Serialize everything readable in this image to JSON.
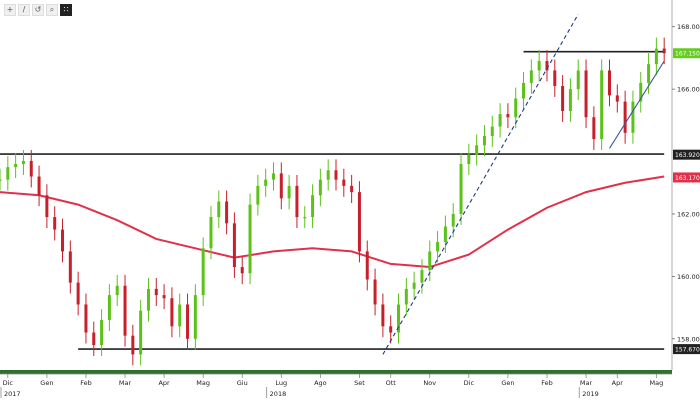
{
  "toolbar": {
    "items": [
      {
        "name": "zoom-in-icon",
        "glyph": "+"
      },
      {
        "name": "pencil-icon",
        "glyph": "/"
      },
      {
        "name": "reset-icon",
        "glyph": "↺"
      },
      {
        "name": "magnify-icon",
        "glyph": "⌕"
      },
      {
        "name": "grid-icon",
        "glyph": "∷"
      }
    ]
  },
  "chart_data": {
    "type": "line",
    "ylim": [
      157.0,
      168.6
    ],
    "yticks": [
      {
        "value": 168.0,
        "label": "168.0000"
      },
      {
        "value": 166.0,
        "label": "166.0000"
      },
      {
        "value": 162.0,
        "label": "162.0000"
      },
      {
        "value": 160.0,
        "label": "160.0000"
      },
      {
        "value": 158.0,
        "label": "158.0000"
      }
    ],
    "price_tags": [
      {
        "value": 167.15,
        "label": "167.1500",
        "color": "#66cc22"
      },
      {
        "value": 163.9,
        "label": "163.9200",
        "color": "#222222"
      },
      {
        "value": 163.17,
        "label": "163.1707",
        "color": "#e0304a"
      },
      {
        "value": 157.67,
        "label": "157.6700",
        "color": "#222222"
      }
    ],
    "x_months": [
      {
        "label": "Dic",
        "x": 1
      },
      {
        "label": "Gen",
        "x": 6
      },
      {
        "label": "Feb",
        "x": 11
      },
      {
        "label": "Mar",
        "x": 16
      },
      {
        "label": "Apr",
        "x": 21
      },
      {
        "label": "Mag",
        "x": 26
      },
      {
        "label": "Giu",
        "x": 31
      },
      {
        "label": "Lug",
        "x": 36
      },
      {
        "label": "Ago",
        "x": 41
      },
      {
        "label": "Set",
        "x": 46
      },
      {
        "label": "Ott",
        "x": 50
      },
      {
        "label": "Nov",
        "x": 55
      },
      {
        "label": "Dic",
        "x": 60
      },
      {
        "label": "Gen",
        "x": 65
      },
      {
        "label": "Feb",
        "x": 70
      },
      {
        "label": "Mar",
        "x": 75
      },
      {
        "label": "Apr",
        "x": 79
      },
      {
        "label": "Mag",
        "x": 84
      }
    ],
    "x_years": [
      {
        "label": "2017",
        "x": 0
      },
      {
        "label": "2018",
        "x": 34
      },
      {
        "label": "2019",
        "x": 74
      }
    ],
    "xlim": [
      0,
      86
    ],
    "series": [
      {
        "kind": "price",
        "x": [
          0,
          1,
          2,
          3,
          4,
          5,
          6,
          7,
          8,
          9,
          10,
          11,
          12,
          13,
          14,
          15,
          16,
          17,
          18,
          19,
          20,
          21,
          22,
          23,
          24,
          25,
          26,
          27,
          28,
          29,
          30,
          31,
          32,
          33,
          34,
          35,
          36,
          37,
          38,
          39,
          40,
          41,
          42,
          43,
          44,
          45,
          46,
          47,
          48,
          49,
          50,
          51,
          52,
          53,
          54,
          55,
          56,
          57,
          58,
          59,
          60,
          61,
          62,
          63,
          64,
          65,
          66,
          67,
          68,
          69,
          70,
          71,
          72,
          73,
          74,
          75,
          76,
          77,
          78,
          79,
          80,
          81,
          82,
          83,
          84,
          85
        ],
        "values": [
          163.1,
          163.5,
          163.6,
          163.7,
          163.2,
          162.6,
          161.9,
          161.5,
          160.8,
          159.8,
          159.1,
          158.2,
          157.8,
          158.6,
          159.4,
          159.7,
          158.1,
          157.5,
          158.9,
          159.6,
          159.4,
          159.3,
          158.4,
          159.1,
          158.0,
          159.4,
          160.9,
          161.9,
          162.4,
          161.7,
          160.3,
          160.1,
          162.3,
          162.9,
          163.1,
          163.3,
          162.5,
          162.9,
          161.9,
          161.9,
          162.6,
          163.1,
          163.4,
          163.1,
          162.9,
          162.7,
          160.8,
          159.9,
          159.1,
          158.4,
          158.2,
          159.1,
          159.6,
          159.8,
          160.2,
          160.8,
          161.1,
          161.6,
          162.0,
          163.6,
          163.9,
          164.2,
          164.5,
          164.8,
          165.2,
          165.1,
          165.7,
          166.2,
          166.6,
          166.9,
          166.6,
          166.1,
          165.3,
          166.0,
          166.6,
          165.1,
          164.4,
          166.6,
          165.8,
          165.6,
          164.6,
          165.6,
          166.2,
          166.8,
          167.3,
          167.15
        ]
      },
      {
        "kind": "moving_average",
        "color": "#e0304a",
        "x": [
          0,
          5,
          10,
          15,
          20,
          25,
          30,
          35,
          40,
          45,
          50,
          55,
          60,
          65,
          70,
          75,
          80,
          85
        ],
        "values": [
          162.7,
          162.6,
          162.3,
          161.8,
          161.2,
          160.9,
          160.6,
          160.8,
          160.9,
          160.8,
          160.4,
          160.3,
          160.7,
          161.5,
          162.2,
          162.7,
          163.0,
          163.2
        ]
      }
    ],
    "levels": [
      {
        "name": "resistance-163-92",
        "value": 163.92,
        "from": 0,
        "to": 85
      },
      {
        "name": "support-157-67",
        "value": 157.67,
        "from": 10,
        "to": 85
      },
      {
        "name": "resistance-167-2",
        "value": 167.2,
        "from": 67,
        "to": 85
      }
    ],
    "trendlines": [
      {
        "name": "dashed-uptrend-line",
        "style": "dashed",
        "x": [
          49,
          74
        ],
        "y": [
          157.5,
          168.4
        ]
      },
      {
        "name": "short-uptrend-line",
        "style": "solid",
        "x": [
          78,
          85
        ],
        "y": [
          164.1,
          166.9
        ]
      }
    ],
    "grid": false
  }
}
